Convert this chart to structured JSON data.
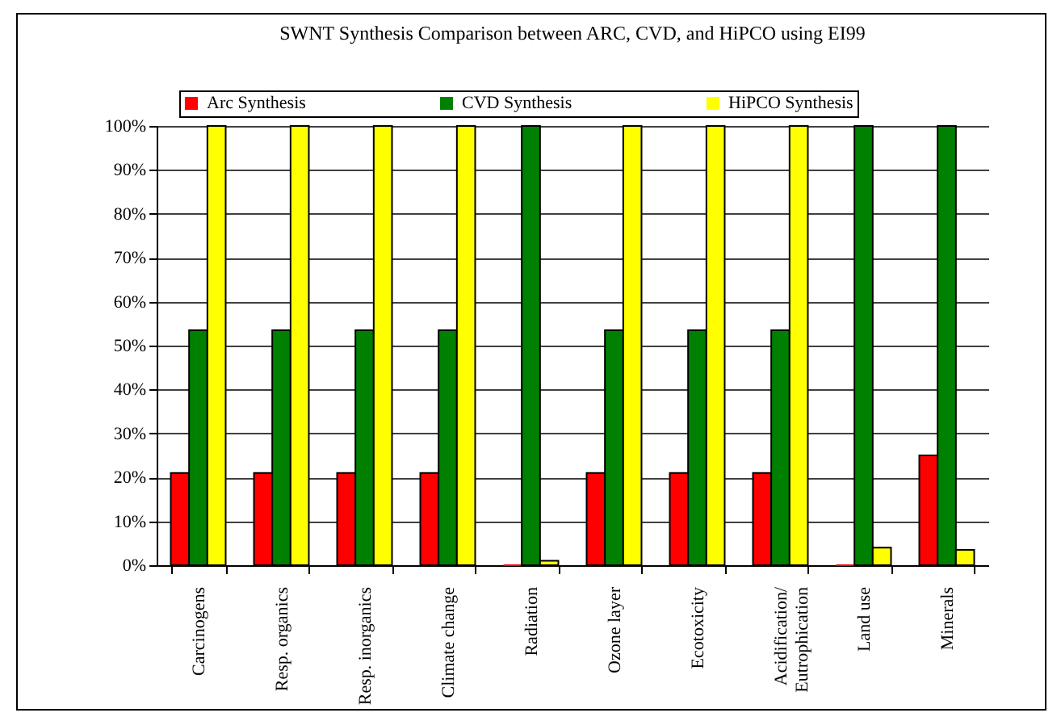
{
  "chart_data": {
    "type": "bar",
    "title": "SWNT Synthesis Comparison between ARC, CVD, and HiPCO using EI99",
    "categories": [
      "Carcinogens",
      "Resp. organics",
      "Resp. inorganics",
      "Climate change",
      "Radiation",
      "Ozone layer",
      "Ecotoxicity",
      "Acidification/\nEutrophication",
      "Land use",
      "Minerals"
    ],
    "series": [
      {
        "name": "Arc Synthesis",
        "color": "#ff0000",
        "values": [
          21,
          21,
          21,
          21,
          0,
          21,
          21,
          21,
          0,
          25
        ]
      },
      {
        "name": "CVD Synthesis",
        "color": "#008000",
        "values": [
          53.5,
          53.5,
          53.5,
          53.5,
          100,
          53.5,
          53.5,
          53.5,
          100,
          100
        ]
      },
      {
        "name": "HiPCO Synthesis",
        "color": "#ffff00",
        "values": [
          100,
          100,
          100,
          100,
          1,
          100,
          100,
          100,
          4,
          3.5
        ]
      }
    ],
    "ylim": [
      0,
      100
    ],
    "yticks": [
      {
        "value": 0,
        "label": "0%"
      },
      {
        "value": 10,
        "label": "10%"
      },
      {
        "value": 20,
        "label": "20%"
      },
      {
        "value": 30,
        "label": "30%"
      },
      {
        "value": 40,
        "label": "40%"
      },
      {
        "value": 50,
        "label": "50%"
      },
      {
        "value": 60,
        "label": "60%"
      },
      {
        "value": 70,
        "label": "70%"
      },
      {
        "value": 80,
        "label": "80%"
      },
      {
        "value": 90,
        "label": "90%"
      },
      {
        "value": 100,
        "label": "100%"
      }
    ],
    "grid": "y",
    "legend": "top"
  }
}
